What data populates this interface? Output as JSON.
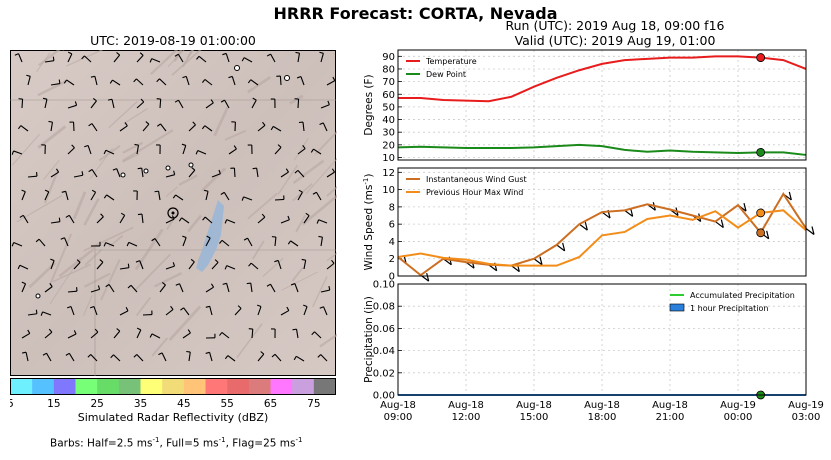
{
  "title": "HRRR Forecast: CORTA, Nevada",
  "map": {
    "title": "UTC: 2019-08-19 01:00:00",
    "colorbar": {
      "label": "Simulated Radar Reflectivity (dBZ)",
      "ticks": [
        "5",
        "15",
        "25",
        "35",
        "45",
        "55",
        "65",
        "75"
      ],
      "colors": [
        "#6ff0ff",
        "#56c1ff",
        "#8077ff",
        "#77ff77",
        "#67dd67",
        "#78c178",
        "#ffff77",
        "#f2dc77",
        "#ffc477",
        "#ff7777",
        "#e86a6a",
        "#db7b7b",
        "#ff77ff",
        "#c9a0dd",
        "#777777"
      ]
    },
    "footer_prefix": "Barbs: Half=2.5 ms",
    "footer_mid1": ", Full=5 ms",
    "footer_mid2": ", Flag=25 ms",
    "footer_sup": "-1"
  },
  "panels": {
    "run_title": "Run (UTC): 2019 Aug 18, 09:00 f16",
    "valid_title": "Valid (UTC): 2019 Aug 19, 01:00"
  },
  "chart_data": [
    {
      "type": "line",
      "ylabel": "Degrees (F)",
      "ylim": [
        8,
        95
      ],
      "yticks": [
        10,
        20,
        30,
        40,
        50,
        60,
        70,
        80,
        90
      ],
      "grid": true,
      "legend_position": "top-left",
      "x_hours": [
        0,
        1,
        2,
        3,
        4,
        5,
        6,
        7,
        8,
        9,
        10,
        11,
        12,
        13,
        14,
        15,
        16,
        17,
        18
      ],
      "series": [
        {
          "name": "Temperature",
          "color": "#e81c1c",
          "values": [
            57,
            57,
            55.5,
            55,
            54.5,
            58,
            66,
            73,
            79,
            84,
            87,
            88,
            89,
            89,
            90,
            90,
            89,
            87,
            80
          ]
        },
        {
          "name": "Dew Point",
          "color": "#1a8a1a",
          "values": [
            18,
            18.5,
            18,
            17.5,
            17.5,
            17.5,
            18,
            19,
            20,
            19,
            16,
            14.5,
            15.5,
            14.5,
            14,
            13.5,
            14,
            14,
            12
          ]
        }
      ],
      "marker": {
        "hour": 16,
        "values": [
          {
            "value": 89,
            "color": "#e81c1c"
          },
          {
            "value": 14,
            "color": "#1a8a1a"
          }
        ]
      }
    },
    {
      "type": "line",
      "ylabel": "Wind Speed (ms",
      "ylabel_sup": "-1",
      "ylim": [
        0,
        12.5
      ],
      "yticks": [
        0,
        2,
        4,
        6,
        8,
        10,
        12
      ],
      "grid": true,
      "legend_position": "top-left",
      "x_hours": [
        0,
        1,
        2,
        3,
        4,
        5,
        6,
        7,
        8,
        9,
        10,
        11,
        12,
        13,
        14,
        15,
        16,
        17,
        18
      ],
      "series": [
        {
          "name": "Instantaneous Wind Gust",
          "color": "#cc6f22",
          "values": [
            2.2,
            0.1,
            2.0,
            1.6,
            1.3,
            1.2,
            2.0,
            3.6,
            6.0,
            7.4,
            7.6,
            8.3,
            7.7,
            7.0,
            6.3,
            8.2,
            5.0,
            9.5,
            5.5
          ]
        },
        {
          "name": "Previous Hour Max Wind",
          "color": "#f38d1a",
          "values": [
            2.2,
            2.6,
            2.1,
            1.9,
            1.4,
            1.2,
            1.2,
            1.2,
            2.2,
            4.7,
            5.1,
            6.6,
            7.0,
            6.5,
            7.5,
            5.6,
            7.3,
            7.6,
            5.3
          ]
        }
      ],
      "marker": {
        "hour": 16,
        "values": [
          {
            "value": 7.3,
            "color": "#f38d1a"
          },
          {
            "value": 5.0,
            "color": "#cc6f22"
          }
        ]
      }
    },
    {
      "type": "line",
      "ylabel": "Precipitation (in)",
      "ylim": [
        0,
        0.1
      ],
      "yticks": [
        "0.00",
        "0.02",
        "0.04",
        "0.06",
        "0.08",
        "0.10"
      ],
      "grid": true,
      "legend_position": "top-right",
      "x_hours": [
        0,
        18
      ],
      "series": [
        {
          "name": "Accumulated Precipitation",
          "color": "#2ecc2e",
          "values": [
            0,
            0
          ]
        },
        {
          "name": "1 hour Precipitation",
          "color": "#2b7fdd",
          "values": [
            0,
            0
          ]
        }
      ],
      "marker": {
        "hour": 16,
        "values": [
          {
            "value": 0,
            "color": "#1a8a1a"
          }
        ]
      },
      "xticks": [
        {
          "hour": 0,
          "line1": "Aug-18",
          "line2": "09:00"
        },
        {
          "hour": 3,
          "line1": "Aug-18",
          "line2": "12:00"
        },
        {
          "hour": 6,
          "line1": "Aug-18",
          "line2": "15:00"
        },
        {
          "hour": 9,
          "line1": "Aug-18",
          "line2": "18:00"
        },
        {
          "hour": 12,
          "line1": "Aug-18",
          "line2": "21:00"
        },
        {
          "hour": 15,
          "line1": "Aug-19",
          "line2": "00:00"
        },
        {
          "hour": 18,
          "line1": "Aug-19",
          "line2": "03:00"
        }
      ]
    }
  ]
}
